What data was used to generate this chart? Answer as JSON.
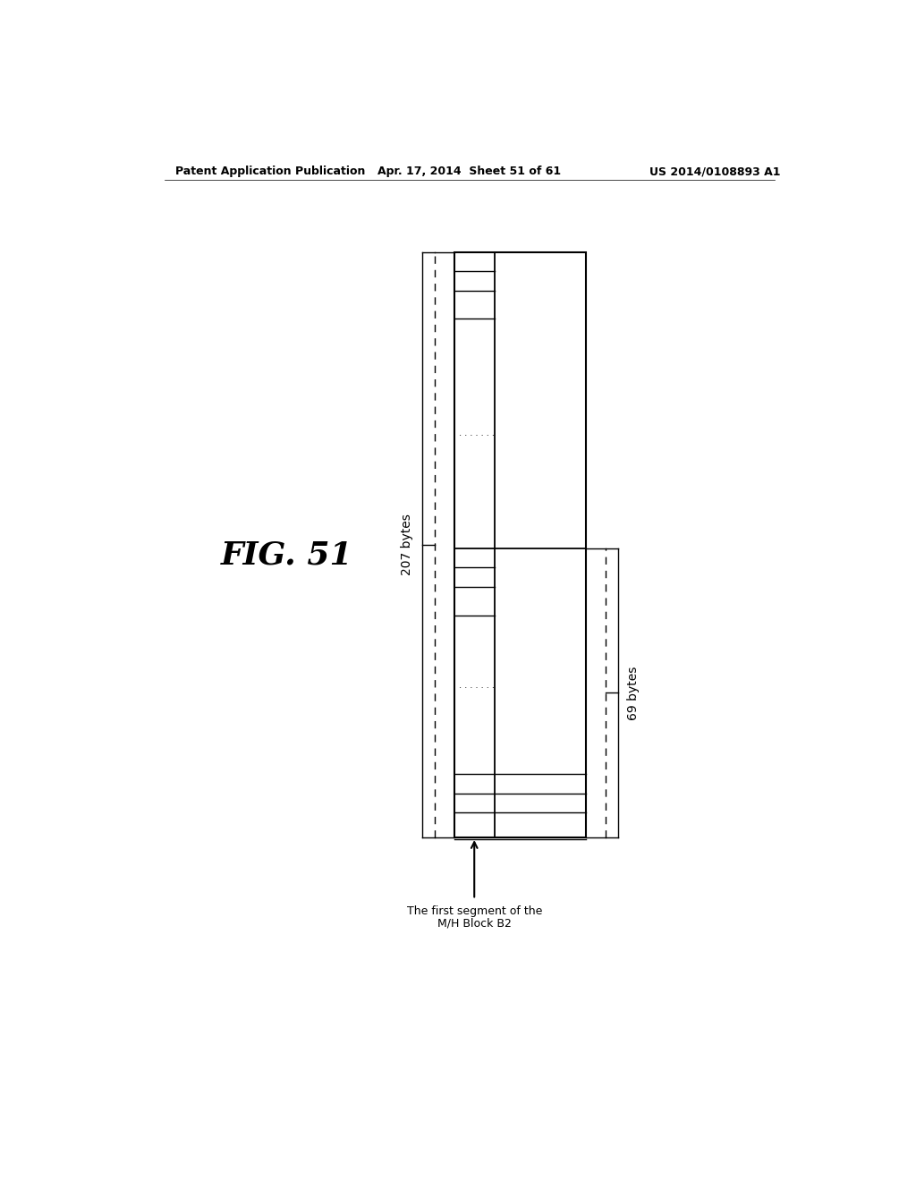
{
  "header_left": "Patent Application Publication",
  "header_center": "Apr. 17, 2014  Sheet 51 of 61",
  "header_right": "US 2014/0108893 A1",
  "label_207": "207 bytes",
  "label_69": "69 bytes",
  "label_arrow_line1": "The first segment of the",
  "label_arrow_line2": "M/H Block B2",
  "fig_label": "FIG. 51",
  "background_color": "#ffffff",
  "line_color": "#000000"
}
